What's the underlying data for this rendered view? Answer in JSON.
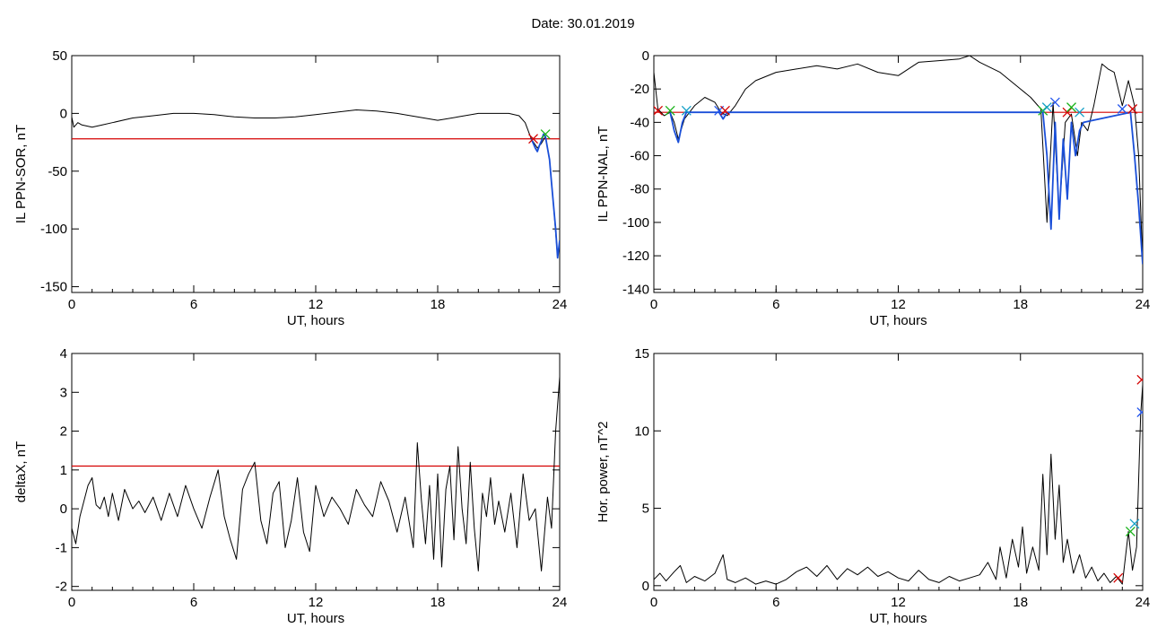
{
  "page": {
    "date_label": "Date:  30.01.2019"
  },
  "colors": {
    "data": "#000000",
    "threshold": "#d40000",
    "highlight": "#1a4fd8",
    "marker_red": "#d40000",
    "marker_green": "#19b219",
    "marker_cyan": "#14a0c8",
    "marker_blue": "#2255ee"
  },
  "chart_data": [
    {
      "id": "sor",
      "type": "line",
      "title": "",
      "xlabel": "UT, hours",
      "ylabel": "IL PPN-SOR, nT",
      "xlim": [
        0,
        24
      ],
      "ylim": [
        -155,
        50
      ],
      "xticks": [
        0,
        6,
        12,
        18,
        24
      ],
      "yticks": [
        50,
        0,
        -50,
        -100,
        -150
      ],
      "threshold": -22,
      "series": [
        {
          "values_x": [
            0,
            0.1,
            0.3,
            0.5,
            1,
            1.5,
            2,
            3,
            4,
            5,
            6,
            7,
            8,
            9,
            10,
            11,
            12,
            13,
            14,
            15,
            16,
            17,
            18,
            19,
            20,
            21,
            21.5,
            22,
            22.3,
            22.6,
            22.9,
            23.1,
            23.3,
            23.5,
            23.7,
            23.9,
            24
          ],
          "values_y": [
            -3,
            -12,
            -8,
            -10,
            -12,
            -10,
            -8,
            -4,
            -2,
            0,
            0,
            -1,
            -3,
            -4,
            -4,
            -3,
            -1,
            1,
            3,
            2,
            0,
            -3,
            -6,
            -3,
            0,
            0,
            0,
            -2,
            -8,
            -22,
            -30,
            -26,
            -20,
            -40,
            -80,
            -125,
            -110
          ]
        },
        {
          "values_x": [
            22.6,
            22.8,
            22.9,
            23.0,
            23.1,
            23.2,
            23.3,
            23.5,
            23.6,
            23.7,
            23.8,
            23.9,
            24
          ],
          "values_y": [
            -22,
            -30,
            -33,
            -28,
            -24,
            -18,
            -20,
            -40,
            -60,
            -80,
            -100,
            -125,
            -110
          ],
          "role": "highlight"
        }
      ],
      "markers": [
        {
          "x": 22.7,
          "y": -22
        },
        {
          "x": 23.3,
          "y": -18
        }
      ]
    },
    {
      "id": "nal",
      "type": "line",
      "title": "",
      "xlabel": "UT, hours",
      "ylabel": "IL PPN-NAL, nT",
      "xlim": [
        0,
        24
      ],
      "ylim": [
        -142,
        0
      ],
      "xticks": [
        0,
        6,
        12,
        18,
        24
      ],
      "yticks": [
        0,
        -20,
        -40,
        -60,
        -80,
        -100,
        -120,
        -140
      ],
      "threshold": -34,
      "series": [
        {
          "values_x": [
            0,
            0.2,
            0.5,
            0.8,
            1,
            1.2,
            1.5,
            2,
            2.5,
            3,
            3.3,
            3.6,
            4,
            4.5,
            5,
            6,
            7,
            8,
            9,
            10,
            11,
            12,
            13,
            14,
            15,
            15.5,
            16,
            17,
            18,
            18.5,
            19,
            19.3,
            19.6,
            19.9,
            20.2,
            20.5,
            20.8,
            21,
            21.3,
            21.6,
            22,
            22.3,
            22.6,
            23,
            23.3,
            23.6,
            23.8,
            24
          ],
          "values_y": [
            -10,
            -32,
            -36,
            -34,
            -40,
            -50,
            -38,
            -30,
            -25,
            -28,
            -34,
            -36,
            -30,
            -20,
            -15,
            -10,
            -8,
            -6,
            -8,
            -5,
            -10,
            -12,
            -4,
            -3,
            -2,
            0,
            -4,
            -10,
            -20,
            -25,
            -32,
            -100,
            -28,
            -95,
            -40,
            -35,
            -60,
            -40,
            -45,
            -30,
            -5,
            -8,
            -10,
            -30,
            -15,
            -30,
            -60,
            -125
          ]
        },
        {
          "values_x": [
            0.8,
            1.0,
            1.2,
            1.4,
            1.6,
            3.2,
            3.4,
            3.6,
            19.1,
            19.3,
            19.5,
            19.7,
            19.9,
            20.1,
            20.3,
            20.5,
            20.7,
            20.9,
            21.1,
            23.4,
            23.6,
            23.8,
            24
          ],
          "values_y": [
            -34,
            -45,
            -52,
            -40,
            -34,
            -34,
            -38,
            -34,
            -34,
            -60,
            -104,
            -40,
            -98,
            -50,
            -86,
            -40,
            -60,
            -45,
            -40,
            -34,
            -60,
            -90,
            -125
          ],
          "role": "highlight"
        }
      ],
      "markers": [
        {
          "x": 0.2,
          "y": -33
        },
        {
          "x": 0.8,
          "y": -33
        },
        {
          "x": 1.6,
          "y": -33
        },
        {
          "x": 3.2,
          "y": -33
        },
        {
          "x": 3.5,
          "y": -33
        },
        {
          "x": 19.1,
          "y": -33
        },
        {
          "x": 19.3,
          "y": -31
        },
        {
          "x": 19.7,
          "y": -28
        },
        {
          "x": 20.3,
          "y": -34
        },
        {
          "x": 20.5,
          "y": -31
        },
        {
          "x": 20.9,
          "y": -34
        },
        {
          "x": 23.0,
          "y": -32
        },
        {
          "x": 23.5,
          "y": -32
        }
      ]
    },
    {
      "id": "deltax",
      "type": "line",
      "title": "",
      "xlabel": "UT, hours",
      "ylabel": "deltaX, nT",
      "xlim": [
        0,
        24
      ],
      "ylim": [
        -2.1,
        4
      ],
      "xticks": [
        0,
        6,
        12,
        18,
        24
      ],
      "yticks": [
        4,
        3,
        2,
        1,
        0,
        -1,
        -2
      ],
      "threshold": 1.1,
      "series": [
        {
          "values_x": [
            0,
            0.2,
            0.4,
            0.6,
            0.8,
            1.0,
            1.2,
            1.4,
            1.6,
            1.8,
            2.0,
            2.3,
            2.6,
            3.0,
            3.3,
            3.6,
            4.0,
            4.4,
            4.8,
            5.2,
            5.6,
            6.0,
            6.4,
            6.8,
            7.2,
            7.5,
            7.8,
            8.1,
            8.4,
            8.7,
            9.0,
            9.3,
            9.6,
            9.9,
            10.2,
            10.5,
            10.8,
            11.1,
            11.4,
            11.7,
            12.0,
            12.4,
            12.8,
            13.2,
            13.6,
            14.0,
            14.4,
            14.8,
            15.2,
            15.6,
            16.0,
            16.4,
            16.8,
            17.0,
            17.2,
            17.4,
            17.6,
            17.8,
            18.0,
            18.2,
            18.4,
            18.6,
            18.8,
            19.0,
            19.2,
            19.4,
            19.6,
            19.8,
            20.0,
            20.2,
            20.4,
            20.6,
            20.8,
            21.0,
            21.3,
            21.6,
            21.9,
            22.2,
            22.5,
            22.8,
            23.1,
            23.4,
            23.6,
            23.8,
            24
          ],
          "values_y": [
            -0.5,
            -0.9,
            -0.2,
            0.2,
            0.6,
            0.8,
            0.1,
            0.0,
            0.3,
            -0.2,
            0.4,
            -0.3,
            0.5,
            0.0,
            0.2,
            -0.1,
            0.3,
            -0.3,
            0.4,
            -0.2,
            0.6,
            0.0,
            -0.5,
            0.3,
            1.0,
            -0.2,
            -0.8,
            -1.3,
            0.5,
            0.9,
            1.2,
            -0.3,
            -0.9,
            0.4,
            0.7,
            -1.0,
            -0.3,
            0.8,
            -0.6,
            -1.1,
            0.6,
            -0.2,
            0.3,
            0.0,
            -0.4,
            0.5,
            0.1,
            -0.2,
            0.7,
            0.2,
            -0.6,
            0.3,
            -1.0,
            1.7,
            0.2,
            -0.9,
            0.6,
            -1.3,
            0.9,
            -1.5,
            0.5,
            1.1,
            -0.8,
            1.6,
            0.0,
            -0.9,
            1.2,
            -0.5,
            -1.6,
            0.4,
            -0.2,
            0.8,
            -0.4,
            0.2,
            -0.6,
            0.4,
            -1.0,
            0.9,
            -0.3,
            0.0,
            -1.6,
            0.3,
            -0.5,
            2.0,
            3.4
          ]
        }
      ]
    },
    {
      "id": "power",
      "type": "line",
      "title": "",
      "xlabel": "UT, hours",
      "ylabel": "Hor. power, nT^2",
      "xlim": [
        0,
        24
      ],
      "ylim": [
        -0.3,
        15
      ],
      "xticks": [
        0,
        6,
        12,
        18,
        24
      ],
      "yticks": [
        15,
        10,
        5,
        0
      ],
      "series": [
        {
          "values_x": [
            0,
            0.3,
            0.6,
            1.0,
            1.3,
            1.6,
            2.0,
            2.5,
            3.0,
            3.4,
            3.6,
            4.0,
            4.5,
            5.0,
            5.5,
            6.0,
            6.5,
            7.0,
            7.5,
            8.0,
            8.5,
            9.0,
            9.5,
            10.0,
            10.5,
            11.0,
            11.5,
            12.0,
            12.5,
            13.0,
            13.5,
            14.0,
            14.5,
            15.0,
            15.5,
            16.0,
            16.4,
            16.8,
            17.0,
            17.3,
            17.6,
            17.9,
            18.1,
            18.3,
            18.6,
            18.9,
            19.1,
            19.3,
            19.5,
            19.7,
            19.9,
            20.1,
            20.3,
            20.6,
            20.9,
            21.2,
            21.5,
            21.8,
            22.1,
            22.4,
            22.7,
            23.0,
            23.3,
            23.5,
            23.7,
            23.9,
            24
          ],
          "values_y": [
            0.4,
            0.8,
            0.3,
            0.9,
            1.3,
            0.2,
            0.6,
            0.3,
            0.8,
            2.0,
            0.4,
            0.2,
            0.5,
            0.1,
            0.3,
            0.1,
            0.4,
            0.9,
            1.2,
            0.6,
            1.3,
            0.4,
            1.1,
            0.7,
            1.2,
            0.6,
            0.9,
            0.5,
            0.3,
            1.0,
            0.4,
            0.2,
            0.6,
            0.3,
            0.5,
            0.7,
            1.5,
            0.4,
            2.5,
            0.5,
            3.0,
            1.2,
            3.8,
            0.8,
            2.5,
            1.0,
            7.2,
            2.0,
            8.5,
            3.0,
            6.5,
            1.5,
            3.0,
            0.8,
            2.0,
            0.5,
            1.2,
            0.3,
            0.8,
            0.2,
            0.6,
            0.1,
            3.5,
            1.0,
            2.5,
            11.0,
            13.0
          ]
        }
      ],
      "markers": [
        {
          "x": 22.8,
          "y": 0.5
        },
        {
          "x": 23.4,
          "y": 3.5
        },
        {
          "x": 23.6,
          "y": 4.0
        },
        {
          "x": 23.95,
          "y": 11.2
        },
        {
          "x": 23.95,
          "y": 13.3
        }
      ]
    }
  ]
}
